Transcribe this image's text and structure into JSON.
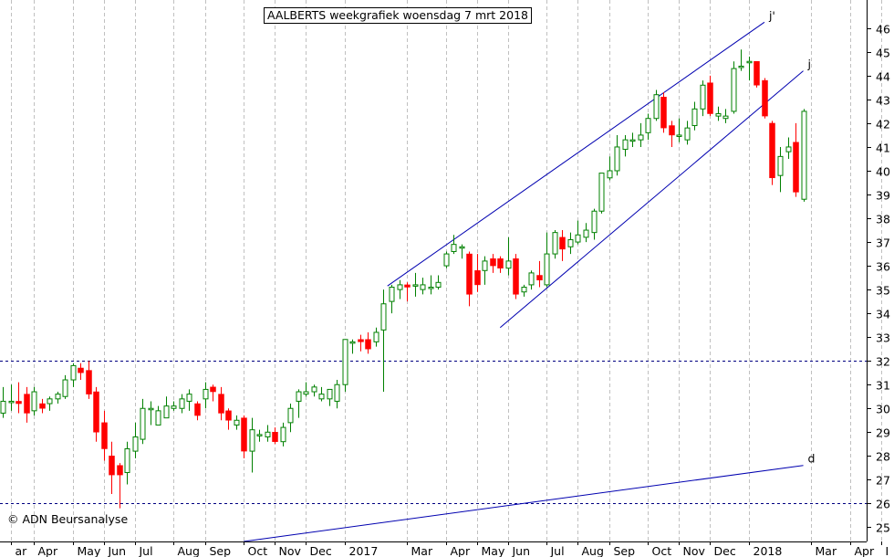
{
  "chart_data": {
    "type": "candlestick",
    "title": "AALBERTS weekgrafiek woensdag 7 mrt 2018",
    "copyright": "© ADN Beursanalyse",
    "ylim": [
      24.4,
      46.8
    ],
    "y_ticks": [
      25,
      26,
      27,
      28,
      29,
      30,
      31,
      32,
      33,
      34,
      35,
      36,
      37,
      38,
      39,
      40,
      41,
      42,
      43,
      44,
      45,
      46
    ],
    "x_ticks": [
      {
        "label": "ar",
        "x": 1.0
      },
      {
        "label": "Apr",
        "x": 4.0
      },
      {
        "label": "May",
        "x": 9.0
      },
      {
        "label": "Jun",
        "x": 13.0
      },
      {
        "label": "Jul",
        "x": 17.0
      },
      {
        "label": "Aug",
        "x": 22.0
      },
      {
        "label": "Sep",
        "x": 26.0
      },
      {
        "label": "Oct",
        "x": 31.0
      },
      {
        "label": "Nov",
        "x": 35.0
      },
      {
        "label": "Dec",
        "x": 39.0
      },
      {
        "label": "2017",
        "x": 44.0
      },
      {
        "label": "Mar",
        "x": 52.0
      },
      {
        "label": "Apr",
        "x": 57.0
      },
      {
        "label": "May",
        "x": 61.0
      },
      {
        "label": "Jun",
        "x": 65.0
      },
      {
        "label": "Jul",
        "x": 70.0
      },
      {
        "label": "Aug",
        "x": 74.0
      },
      {
        "label": "Sep",
        "x": 78.0
      },
      {
        "label": "Oct",
        "x": 83.0
      },
      {
        "label": "Nov",
        "x": 87.0
      },
      {
        "label": "Dec",
        "x": 91.0
      },
      {
        "label": "2018",
        "x": 96.0
      },
      {
        "label": "Mar",
        "x": 104.0
      },
      {
        "label": "Apr",
        "x": 109.0
      },
      {
        "label": "I",
        "x": 113.0
      }
    ],
    "candles": [
      [
        29.8,
        30.3,
        30.9,
        29.6
      ],
      [
        30.3,
        30.3,
        31.0,
        29.9
      ],
      [
        30.3,
        30.2,
        31.1,
        29.8
      ],
      [
        30.6,
        29.8,
        30.9,
        29.4
      ],
      [
        29.9,
        30.7,
        30.9,
        29.7
      ],
      [
        30.2,
        30.0,
        30.4,
        29.8
      ],
      [
        30.2,
        30.4,
        30.5,
        29.9
      ],
      [
        30.4,
        30.6,
        30.7,
        30.2
      ],
      [
        30.5,
        31.2,
        31.4,
        30.4
      ],
      [
        31.2,
        31.8,
        31.9,
        30.9
      ],
      [
        31.7,
        31.5,
        31.9,
        31.2
      ],
      [
        31.6,
        30.6,
        32.0,
        30.4
      ],
      [
        30.7,
        29.0,
        30.9,
        28.6
      ],
      [
        29.4,
        28.3,
        29.9,
        27.8
      ],
      [
        28.0,
        27.2,
        28.6,
        26.4
      ],
      [
        27.6,
        27.2,
        27.7,
        25.8
      ],
      [
        27.3,
        28.3,
        28.6,
        26.8
      ],
      [
        28.2,
        28.8,
        29.4,
        27.9
      ],
      [
        28.7,
        30.0,
        30.4,
        28.5
      ],
      [
        30.0,
        30.0,
        30.3,
        29.3
      ],
      [
        29.3,
        29.9,
        30.1,
        29.3
      ],
      [
        29.6,
        30.1,
        30.5,
        29.7
      ],
      [
        30.0,
        30.1,
        30.3,
        29.9
      ],
      [
        30.0,
        30.4,
        30.6,
        29.8
      ],
      [
        30.3,
        30.6,
        30.8,
        29.9
      ],
      [
        30.2,
        29.7,
        30.3,
        29.5
      ],
      [
        30.4,
        30.8,
        31.1,
        30.0
      ],
      [
        30.9,
        30.7,
        31.0,
        30.3
      ],
      [
        30.6,
        29.8,
        30.9,
        29.5
      ],
      [
        29.9,
        29.5,
        30.0,
        29.1
      ],
      [
        29.3,
        29.5,
        29.7,
        29.1
      ],
      [
        29.6,
        28.2,
        29.7,
        27.9
      ],
      [
        28.2,
        29.1,
        29.6,
        27.3
      ],
      [
        28.9,
        28.9,
        29.1,
        28.6
      ],
      [
        28.8,
        29.0,
        29.3,
        28.6
      ],
      [
        29.0,
        28.6,
        29.2,
        28.5
      ],
      [
        28.6,
        29.2,
        29.4,
        28.4
      ],
      [
        29.4,
        30.0,
        30.2,
        29.0
      ],
      [
        30.3,
        30.7,
        30.8,
        29.6
      ],
      [
        30.6,
        30.7,
        31.1,
        30.5
      ],
      [
        30.7,
        30.9,
        31.0,
        30.5
      ],
      [
        30.4,
        30.6,
        30.9,
        30.3
      ],
      [
        30.4,
        30.8,
        30.8,
        30.1
      ],
      [
        30.3,
        31.0,
        31.2,
        30.0
      ],
      [
        31.0,
        32.9,
        32.9,
        30.7
      ],
      [
        32.8,
        32.8,
        32.9,
        32.3
      ],
      [
        32.9,
        32.8,
        33.1,
        32.4
      ],
      [
        32.9,
        32.5,
        33.2,
        32.3
      ],
      [
        32.8,
        33.2,
        33.4,
        32.6
      ],
      [
        33.3,
        34.4,
        35.0,
        30.7
      ],
      [
        34.5,
        35.1,
        35.2,
        34.0
      ],
      [
        35.0,
        35.2,
        35.4,
        34.6
      ],
      [
        35.2,
        35.1,
        35.3,
        34.5
      ],
      [
        35.2,
        35.2,
        35.7,
        34.7
      ],
      [
        35.0,
        35.2,
        35.5,
        34.8
      ],
      [
        35.1,
        35.1,
        35.6,
        34.8
      ],
      [
        35.1,
        35.3,
        35.6,
        35.0
      ],
      [
        36.0,
        36.5,
        36.6,
        35.9
      ],
      [
        36.6,
        36.9,
        37.3,
        36.5
      ],
      [
        36.8,
        36.8,
        36.9,
        36.3
      ],
      [
        36.5,
        34.8,
        36.6,
        34.3
      ],
      [
        35.8,
        35.2,
        36.5,
        34.9
      ],
      [
        35.8,
        36.2,
        36.4,
        35.2
      ],
      [
        36.3,
        36.0,
        36.5,
        35.7
      ],
      [
        36.3,
        35.9,
        36.4,
        35.7
      ],
      [
        35.9,
        36.2,
        37.2,
        35.6
      ],
      [
        36.3,
        34.8,
        36.5,
        34.6
      ],
      [
        34.9,
        35.1,
        35.2,
        34.7
      ],
      [
        35.2,
        35.7,
        35.8,
        35.0
      ],
      [
        35.6,
        35.4,
        36.2,
        35.1
      ],
      [
        35.2,
        36.5,
        37.4,
        35.1
      ],
      [
        36.5,
        37.4,
        37.5,
        36.3
      ],
      [
        37.2,
        36.7,
        37.5,
        36.2
      ],
      [
        36.8,
        37.1,
        37.4,
        36.5
      ],
      [
        37.0,
        37.3,
        37.9,
        36.9
      ],
      [
        37.2,
        37.5,
        37.8,
        37.0
      ],
      [
        37.4,
        38.3,
        38.4,
        37.1
      ],
      [
        38.3,
        39.9,
        39.9,
        38.2
      ],
      [
        39.7,
        40.0,
        40.6,
        39.6
      ],
      [
        40.0,
        41.0,
        41.5,
        39.8
      ],
      [
        40.9,
        41.3,
        41.5,
        40.6
      ],
      [
        41.3,
        41.3,
        41.6,
        41.0
      ],
      [
        41.3,
        41.5,
        42.0,
        41.0
      ],
      [
        41.6,
        42.2,
        42.4,
        41.3
      ],
      [
        42.2,
        43.2,
        43.4,
        42.1
      ],
      [
        43.1,
        41.8,
        43.3,
        41.6
      ],
      [
        41.9,
        41.5,
        42.1,
        41.0
      ],
      [
        41.5,
        41.5,
        42.2,
        41.2
      ],
      [
        41.3,
        41.8,
        42.1,
        41.1
      ],
      [
        41.9,
        42.6,
        42.9,
        41.7
      ],
      [
        42.6,
        43.6,
        43.8,
        42.3
      ],
      [
        43.7,
        42.4,
        44.0,
        42.3
      ],
      [
        42.3,
        42.4,
        42.7,
        42.1
      ],
      [
        42.2,
        42.3,
        42.6,
        42.0
      ],
      [
        42.5,
        44.3,
        44.6,
        42.4
      ],
      [
        44.4,
        44.4,
        45.1,
        44.2
      ],
      [
        44.6,
        44.6,
        44.8,
        43.8
      ],
      [
        44.6,
        43.6,
        44.6,
        43.5
      ],
      [
        43.8,
        42.3,
        43.9,
        42.2
      ],
      [
        42.0,
        39.7,
        42.1,
        39.4
      ],
      [
        39.8,
        40.6,
        41.0,
        39.1
      ],
      [
        40.8,
        41.0,
        41.4,
        40.5
      ],
      [
        41.2,
        39.1,
        42.0,
        38.9
      ],
      [
        38.8,
        42.5,
        42.6,
        38.7
      ]
    ],
    "horizontal_lines": [
      32.0,
      26.0
    ],
    "trendlines": [
      {
        "label": "j'",
        "x1": 49.5,
        "y1": 35.15,
        "x2": 98.0,
        "y2": 46.25
      },
      {
        "label": "j",
        "x1": 64.0,
        "y1": 33.4,
        "x2": 103.0,
        "y2": 44.2
      },
      {
        "label": "d",
        "x1": 31.0,
        "y1": 24.4,
        "x2": 103.0,
        "y2": 27.6
      }
    ],
    "colors": {
      "up": "#008000",
      "down": "#ff0000",
      "trendline": "#0000b0",
      "hline": "#000080",
      "grid": "#c0c0c0",
      "label": "#0000b0"
    }
  }
}
